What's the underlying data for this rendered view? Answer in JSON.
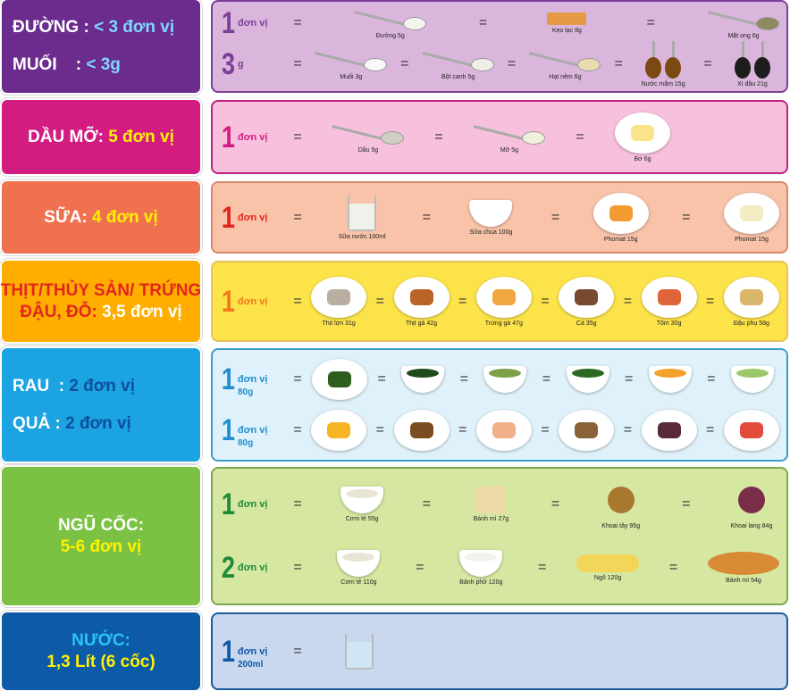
{
  "rows": [
    {
      "left": {
        "lines": [
          [
            {
              "t": "ĐƯỜNG : ",
              "c": "#ffffff"
            },
            {
              "t": "< 3 đơn vị",
              "c": "#7fd6ff"
            }
          ],
          [
            {
              "t": "MUỐI    : ",
              "c": "#ffffff"
            },
            {
              "t": "< 3g",
              "c": "#7fd6ff"
            }
          ]
        ],
        "bg": "#6b2c8e",
        "align": "left"
      },
      "right": {
        "bg": "#dbb6dc",
        "border": "#7b3f98",
        "accent": "#7b3f98",
        "lines": [
          {
            "num": "1",
            "lab": "đơn vị",
            "items": [
              {
                "name": "Đường 5g",
                "shape": "spoon",
                "color": "#f4f4ee"
              },
              {
                "name": "Kẹo lạc 8g",
                "shape": "bar",
                "color": "#e59a45"
              },
              {
                "name": "Mật ong 6g",
                "shape": "spoon",
                "color": "#8f8a62"
              }
            ]
          },
          {
            "num": "3",
            "lab": "g",
            "items": [
              {
                "name": "Muối 3g",
                "shape": "spoon",
                "color": "#f8f8f8"
              },
              {
                "name": "Bột canh 5g",
                "shape": "spoon",
                "color": "#efefe8"
              },
              {
                "name": "Hạt nêm 6g",
                "shape": "spoon",
                "color": "#e8dcb0"
              },
              {
                "name": "Nước mắm 15g",
                "shape": "ladle",
                "color": "#7a4a12"
              },
              {
                "name": "Xì dầu 21g",
                "shape": "ladle",
                "color": "#1d1d1d"
              }
            ]
          }
        ]
      }
    },
    {
      "left": {
        "lines": [
          [
            {
              "t": "DẦU MỠ: ",
              "c": "#ffffff"
            },
            {
              "t": "5 đơn vị",
              "c": "#fff200"
            }
          ]
        ],
        "bg": "#d21c82"
      },
      "right": {
        "bg": "#f7c1dd",
        "border": "#c2207f",
        "accent": "#d21c82",
        "lines": [
          {
            "num": "1",
            "lab": "đơn vị",
            "items": [
              {
                "name": "Dầu 5g",
                "shape": "spoon",
                "color": "#cfcfc4"
              },
              {
                "name": "Mỡ 5g",
                "shape": "spoon",
                "color": "#efefdc"
              },
              {
                "name": "Bơ 6g",
                "shape": "plate",
                "color": "#fbe38a"
              }
            ],
            "compact": true
          }
        ]
      }
    },
    {
      "left": {
        "lines": [
          [
            {
              "t": "SỮA: ",
              "c": "#ffffff"
            },
            {
              "t": "4 đơn vị",
              "c": "#fff200"
            }
          ]
        ],
        "bg": "#f0714f"
      },
      "right": {
        "bg": "#f8c3a9",
        "border": "#d88a6c",
        "accent": "#e2261d",
        "lines": [
          {
            "num": "1",
            "lab": "đơn vị",
            "items": [
              {
                "name": "Sữa nước 100ml",
                "shape": "glass",
                "color": "#f1f1ec"
              },
              {
                "name": "Sữa chua 100g",
                "shape": "bowl",
                "color": "#ffffff"
              },
              {
                "name": "Phomat 15g",
                "shape": "plate",
                "color": "#f39a32"
              },
              {
                "name": "Phomat 15g",
                "shape": "plate",
                "color": "#f4ecc4"
              }
            ]
          }
        ]
      }
    },
    {
      "left": {
        "lines": [
          [
            {
              "t": "THỊT/THỦY SẢN/ TRỨNG",
              "c": "#e2261d"
            }
          ],
          [
            {
              "t": "ĐẬU, ĐỖ: ",
              "c": "#e2261d"
            },
            {
              "t": "3,5 đơn vị",
              "c": "#ffffff"
            }
          ]
        ],
        "bg": "#ffae00"
      },
      "right": {
        "bg": "#fde34a",
        "border": "#e8c25a",
        "accent": "#f07a1a",
        "lines": [
          {
            "num": "1",
            "lab": "đơn vị",
            "items": [
              {
                "name": "Thịt lợn 31g",
                "shape": "plate",
                "color": "#b9aea0"
              },
              {
                "name": "Thịt gà 42g",
                "shape": "plate",
                "color": "#b9652a"
              },
              {
                "name": "Trứng gà 47g",
                "shape": "plate",
                "color": "#f1a640"
              },
              {
                "name": "Cá 35g",
                "shape": "plate",
                "color": "#7a4a30"
              },
              {
                "name": "Tôm 30g",
                "shape": "plate",
                "color": "#e0643a"
              },
              {
                "name": "Đậu phụ 58g",
                "shape": "plate",
                "color": "#d9b66a"
              }
            ]
          }
        ]
      }
    },
    {
      "left": {
        "lines": [
          [
            {
              "t": "RAU  : ",
              "c": "#ffffff"
            },
            {
              "t": "2 đơn vị",
              "c": "#0d4f9e"
            }
          ],
          [
            {
              "t": "QUẢ : ",
              "c": "#ffffff"
            },
            {
              "t": "2 đơn vị",
              "c": "#0d4f9e"
            }
          ]
        ],
        "bg": "#1ca3e2",
        "align": "left"
      },
      "right": {
        "bg": "#dff1fa",
        "border": "#3a9fc9",
        "accent": "#1f8fd0",
        "lines": [
          {
            "num": "1",
            "lab": "đơn vị",
            "sub": "80g",
            "items": [
              {
                "shape": "plate",
                "color": "#2f5d1e"
              },
              {
                "shape": "bowl",
                "color": "#1f4a1c"
              },
              {
                "shape": "bowl",
                "color": "#7da046"
              },
              {
                "shape": "bowl",
                "color": "#2c6a23"
              },
              {
                "shape": "bowl",
                "color": "#f2a22a"
              },
              {
                "shape": "bowl",
                "color": "#9cc86a"
              }
            ]
          },
          {
            "num": "1",
            "lab": "đơn vị",
            "sub": "80g",
            "items": [
              {
                "shape": "plate",
                "color": "#f6b624"
              },
              {
                "shape": "plate",
                "color": "#7a4e22"
              },
              {
                "shape": "plate",
                "color": "#f2b08a"
              },
              {
                "shape": "plate",
                "color": "#8a6238"
              },
              {
                "shape": "plate",
                "color": "#5a2a3a"
              },
              {
                "shape": "plate",
                "color": "#e24a3a"
              }
            ]
          }
        ]
      }
    },
    {
      "left": {
        "lines": [
          [
            {
              "t": "NGŨ CỐC:",
              "c": "#ffffff"
            }
          ],
          [
            {
              "t": "5-6 đơn vị",
              "c": "#fff200"
            }
          ]
        ],
        "bg": "#7bc143"
      },
      "right": {
        "bg": "#d5e7a1",
        "border": "#7ba84f",
        "accent": "#1f8a3a",
        "lines": [
          {
            "num": "1",
            "lab": "đơn vị",
            "items": [
              {
                "name": "Cơm tẻ 55g",
                "shape": "bowl",
                "color": "#e9e4d4"
              },
              {
                "name": "Bánh mì 27g",
                "shape": "bar",
                "color": "#efd9a6"
              },
              {
                "name": "Khoai tây 95g",
                "shape": "plate",
                "color": "#a8782e",
                "bare": true
              },
              {
                "name": "Khoai lang 84g",
                "shape": "plate",
                "color": "#7a2e4a",
                "bare": true
              }
            ]
          },
          {
            "num": "2",
            "lab": "đơn vị",
            "items": [
              {
                "name": "Cơm tẻ 110g",
                "shape": "bowl",
                "color": "#e9e4d4"
              },
              {
                "name": "Bánh phở 120g",
                "shape": "bowl",
                "color": "#f2f2ee"
              },
              {
                "name": "Ngô 120g",
                "shape": "bar",
                "color": "#f1d65a"
              },
              {
                "name": "Bánh mì 54g",
                "shape": "bar",
                "color": "#d98a34"
              }
            ]
          }
        ]
      }
    },
    {
      "left": {
        "lines": [
          [
            {
              "t": "NƯỚC:",
              "c": "#29c4f6"
            }
          ],
          [
            {
              "t": "1,3 Lít (6 cốc)",
              "c": "#fff200"
            }
          ]
        ],
        "bg": "#0d5aa7"
      },
      "right": {
        "bg": "#c9d8ef",
        "border": "#1a5c9e",
        "accent": "#0d5aa7",
        "lines": [
          {
            "num": "1",
            "lab": "đơn vị",
            "sub": "200ml",
            "items": [
              {
                "shape": "glass",
                "color": "#cfe6f4"
              }
            ],
            "compact": true
          }
        ]
      }
    }
  ]
}
